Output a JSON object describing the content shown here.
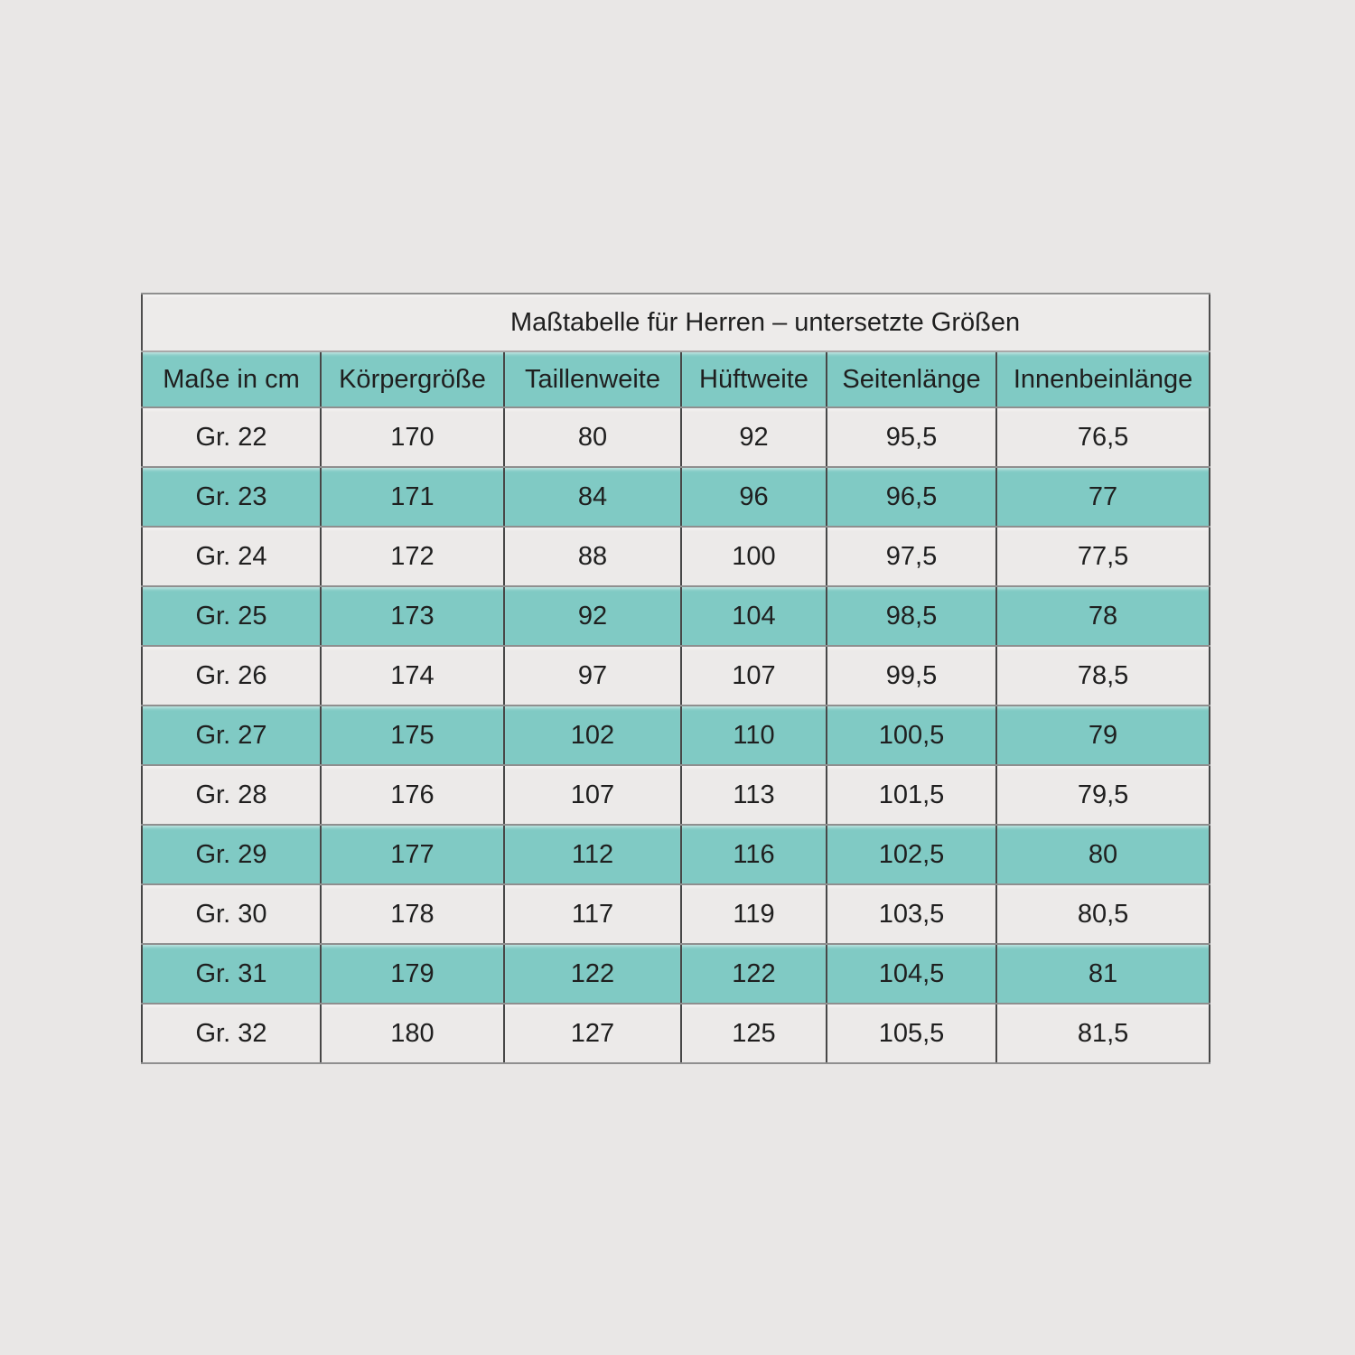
{
  "page": {
    "background_color": "#e9e7e6"
  },
  "table": {
    "title": "Maßtabelle für Herren – untersetzte Größen",
    "columns": [
      "Maße in cm",
      "Körpergröße",
      "Taillenweite",
      "Hüftweite",
      "Seitenlänge",
      "Innenbeinlänge"
    ],
    "rows": [
      {
        "label": "Gr. 22",
        "values": [
          "170",
          "80",
          "92",
          "95,5",
          "76,5"
        ],
        "highlight": false
      },
      {
        "label": "Gr. 23",
        "values": [
          "171",
          "84",
          "96",
          "96,5",
          "77"
        ],
        "highlight": true
      },
      {
        "label": "Gr. 24",
        "values": [
          "172",
          "88",
          "100",
          "97,5",
          "77,5"
        ],
        "highlight": false
      },
      {
        "label": "Gr. 25",
        "values": [
          "173",
          "92",
          "104",
          "98,5",
          "78"
        ],
        "highlight": true
      },
      {
        "label": "Gr. 26",
        "values": [
          "174",
          "97",
          "107",
          "99,5",
          "78,5"
        ],
        "highlight": false
      },
      {
        "label": "Gr. 27",
        "values": [
          "175",
          "102",
          "110",
          "100,5",
          "79"
        ],
        "highlight": true
      },
      {
        "label": "Gr. 28",
        "values": [
          "176",
          "107",
          "113",
          "101,5",
          "79,5"
        ],
        "highlight": false
      },
      {
        "label": "Gr. 29",
        "values": [
          "177",
          "112",
          "116",
          "102,5",
          "80"
        ],
        "highlight": true
      },
      {
        "label": "Gr. 30",
        "values": [
          "178",
          "117",
          "119",
          "103,5",
          "80,5"
        ],
        "highlight": false
      },
      {
        "label": "Gr. 31",
        "values": [
          "179",
          "122",
          "122",
          "104,5",
          "81"
        ],
        "highlight": true
      },
      {
        "label": "Gr. 32",
        "values": [
          "180",
          "127",
          "125",
          "105,5",
          "81,5"
        ],
        "highlight": false
      }
    ],
    "colors": {
      "highlight_teal": "#80cac4",
      "row_light": "#eceae9",
      "title_bg": "#edebea",
      "border_vertical": "#474747",
      "border_horizontal": "#8f8f8f",
      "text": "#1f1f1f"
    }
  }
}
